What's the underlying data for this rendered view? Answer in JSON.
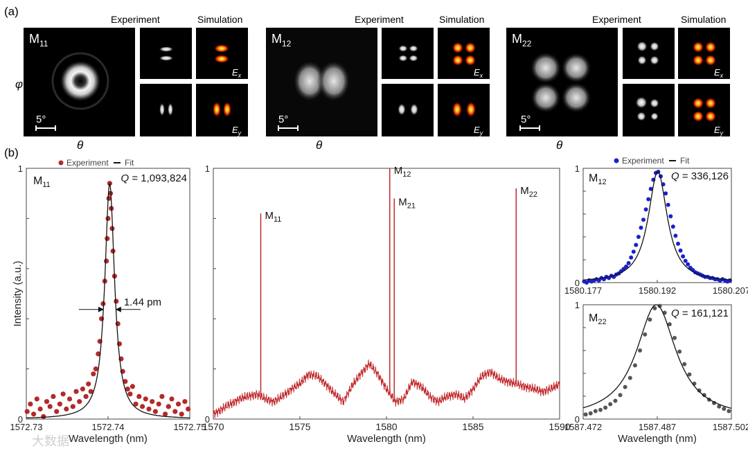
{
  "panel_a": {
    "label": "(a)",
    "col_experiment": "Experiment",
    "col_simulation": "Simulation",
    "phi_label": "φ",
    "theta_label": "θ",
    "scale_label": "5°",
    "ex_label": "E",
    "ex_sub": "x",
    "ey_label": "E",
    "ey_sub": "y",
    "modes": [
      {
        "name": "M",
        "sub": "11"
      },
      {
        "name": "M",
        "sub": "12"
      },
      {
        "name": "M",
        "sub": "22"
      }
    ]
  },
  "panel_b": {
    "label": "(b)",
    "watermark": "大数据"
  },
  "colors": {
    "experiment_red": "#b22a2a",
    "experiment_blue": "#1a22c8",
    "experiment_gray": "#555555",
    "fit": "#111111",
    "spectrum": "#c0282c"
  },
  "chart_data": [
    {
      "type": "scatter",
      "title": "M11",
      "mode_name": "M",
      "mode_sub": "11",
      "q_label": "Q",
      "q_value": " = 1,093,824",
      "xlabel": "Wavelength (nm)",
      "ylabel": "Intensity (a.u.)",
      "xlim": [
        1572.73,
        1572.75
      ],
      "ylim": [
        0,
        1
      ],
      "xticks": [
        "1572.73",
        "1572.74",
        "1572.75"
      ],
      "yticks": [
        "0",
        "1"
      ],
      "fwhm_label": "1.44 pm",
      "legend": [
        {
          "name": "Experiment",
          "marker": "dot"
        },
        {
          "name": "Fit",
          "marker": "line"
        }
      ],
      "fit": {
        "center": 1572.7402,
        "fwhm": 0.00144,
        "amplitude": 0.94,
        "baseline": 0.0
      },
      "series": [
        {
          "name": "Experiment",
          "x": [
            1572.7301,
            1572.7305,
            1572.7309,
            1572.7313,
            1572.7317,
            1572.7321,
            1572.7325,
            1572.7329,
            1572.7333,
            1572.7337,
            1572.7341,
            1572.7345,
            1572.7349,
            1572.7353,
            1572.7357,
            1572.7361,
            1572.7365,
            1572.7369,
            1572.7373,
            1572.7376,
            1572.7379,
            1572.7382,
            1572.7385,
            1572.7388,
            1572.739,
            1572.7392,
            1572.7394,
            1572.7396,
            1572.7398,
            1572.7399,
            1572.74,
            1572.7401,
            1572.7402,
            1572.7403,
            1572.7404,
            1572.7405,
            1572.7406,
            1572.7408,
            1572.741,
            1572.7412,
            1572.7414,
            1572.7416,
            1572.7418,
            1572.7421,
            1572.7424,
            1572.7427,
            1572.743,
            1572.7434,
            1572.7438,
            1572.7442,
            1572.7446,
            1572.745,
            1572.7454,
            1572.7458,
            1572.7462,
            1572.7466,
            1572.747,
            1572.7474,
            1572.7478,
            1572.7482,
            1572.7486,
            1572.749,
            1572.7494,
            1572.7498
          ],
          "y": [
            0.03,
            0.06,
            0.02,
            0.08,
            0.04,
            0.01,
            0.07,
            0.05,
            0.09,
            0.03,
            0.06,
            0.1,
            0.04,
            0.08,
            0.05,
            0.11,
            0.07,
            0.12,
            0.09,
            0.14,
            0.11,
            0.18,
            0.2,
            0.26,
            0.31,
            0.4,
            0.46,
            0.55,
            0.63,
            0.72,
            0.8,
            0.88,
            0.94,
            0.9,
            0.84,
            0.76,
            0.67,
            0.57,
            0.47,
            0.38,
            0.3,
            0.24,
            0.19,
            0.15,
            0.12,
            0.1,
            0.13,
            0.06,
            0.09,
            0.05,
            0.08,
            0.04,
            0.07,
            0.03,
            0.06,
            0.09,
            0.02,
            0.05,
            0.08,
            0.03,
            0.06,
            0.02,
            0.07,
            0.04
          ]
        }
      ]
    },
    {
      "type": "line",
      "xlabel": "Wavelength (nm)",
      "xlim": [
        1570,
        1590
      ],
      "ylim": [
        0,
        1
      ],
      "xticks": [
        "1570",
        "1575",
        "1580",
        "1585",
        "1590"
      ],
      "yticks": [
        "0",
        "1"
      ],
      "peaks": [
        {
          "name": "M",
          "sub": "11",
          "x": 1572.74,
          "y": 0.82
        },
        {
          "name": "M",
          "sub": "12",
          "x": 1580.19,
          "y": 1.0
        },
        {
          "name": "M",
          "sub": "21",
          "x": 1580.45,
          "y": 0.88
        },
        {
          "name": "M",
          "sub": "22",
          "x": 1587.49,
          "y": 0.92
        }
      ],
      "series": [
        {
          "name": "Spectrum",
          "x": [
            1570,
            1570.5,
            1571,
            1571.5,
            1572,
            1572.5,
            1573,
            1573.5,
            1574,
            1574.5,
            1575,
            1575.5,
            1576,
            1576.5,
            1577,
            1577.5,
            1578,
            1578.5,
            1579,
            1579.5,
            1580,
            1580.5,
            1581,
            1581.5,
            1582,
            1582.5,
            1583,
            1583.5,
            1584,
            1584.5,
            1585,
            1585.5,
            1586,
            1586.5,
            1587,
            1587.5,
            1588,
            1588.5,
            1589,
            1589.5,
            1590
          ],
          "y": [
            0.02,
            0.04,
            0.06,
            0.08,
            0.09,
            0.1,
            0.08,
            0.07,
            0.09,
            0.12,
            0.14,
            0.18,
            0.17,
            0.14,
            0.1,
            0.07,
            0.13,
            0.18,
            0.22,
            0.18,
            0.12,
            0.07,
            0.08,
            0.15,
            0.13,
            0.09,
            0.07,
            0.09,
            0.1,
            0.08,
            0.12,
            0.17,
            0.19,
            0.16,
            0.15,
            0.14,
            0.13,
            0.12,
            0.11,
            0.12,
            0.14
          ]
        }
      ]
    },
    {
      "type": "scatter",
      "mode_name": "M",
      "mode_sub": "12",
      "q_label": "Q",
      "q_value": " = 336,126",
      "xlim": [
        1580.177,
        1580.207
      ],
      "ylim": [
        0,
        1
      ],
      "xticks": [
        "1580.177",
        "1580.192",
        "1580.207"
      ],
      "yticks": [
        "0",
        "1"
      ],
      "legend": [
        {
          "name": "Experiment",
          "marker": "dot"
        },
        {
          "name": "Fit",
          "marker": "line"
        }
      ],
      "fit": {
        "center": 1580.1921,
        "fwhm": 0.0047,
        "amplitude": 0.97,
        "baseline": 0.0
      },
      "series": [
        {
          "name": "Experiment",
          "x": [
            1580.1772,
            1580.1777,
            1580.1782,
            1580.1787,
            1580.1792,
            1580.1797,
            1580.1802,
            1580.1807,
            1580.1812,
            1580.1817,
            1580.1822,
            1580.1827,
            1580.1832,
            1580.1837,
            1580.1842,
            1580.1847,
            1580.1852,
            1580.1857,
            1580.1862,
            1580.1867,
            1580.1872,
            1580.1877,
            1580.1882,
            1580.1887,
            1580.1892,
            1580.1897,
            1580.1902,
            1580.1907,
            1580.1912,
            1580.1917,
            1580.1922,
            1580.1927,
            1580.1932,
            1580.1937,
            1580.1942,
            1580.1947,
            1580.1952,
            1580.1957,
            1580.1962,
            1580.1967,
            1580.1972,
            1580.1977,
            1580.1982,
            1580.1987,
            1580.1992,
            1580.1997,
            1580.2002,
            1580.2007,
            1580.2012,
            1580.2017,
            1580.2022,
            1580.2027,
            1580.2032,
            1580.2037,
            1580.2042,
            1580.2047,
            1580.2052,
            1580.2057,
            1580.2062,
            1580.2067
          ],
          "y": [
            0.01,
            0.0,
            0.02,
            0.01,
            0.02,
            0.03,
            0.02,
            0.04,
            0.03,
            0.05,
            0.04,
            0.06,
            0.05,
            0.07,
            0.08,
            0.1,
            0.12,
            0.14,
            0.17,
            0.22,
            0.27,
            0.33,
            0.4,
            0.48,
            0.55,
            0.64,
            0.73,
            0.82,
            0.9,
            0.96,
            0.97,
            0.93,
            0.86,
            0.78,
            0.68,
            0.58,
            0.49,
            0.41,
            0.34,
            0.28,
            0.23,
            0.19,
            0.16,
            0.13,
            0.11,
            0.09,
            0.08,
            0.07,
            0.06,
            0.05,
            0.05,
            0.04,
            0.04,
            0.03,
            0.03,
            0.02,
            0.03,
            0.02,
            0.01,
            0.02
          ]
        }
      ]
    },
    {
      "type": "scatter",
      "mode_name": "M",
      "mode_sub": "22",
      "q_label": "Q",
      "q_value": " = 161,121",
      "xlabel": "Wavelength (nm)",
      "xlim": [
        1587.472,
        1587.502
      ],
      "ylim": [
        0,
        1
      ],
      "xticks": [
        "1587.472",
        "1587.487",
        "1587.502"
      ],
      "yticks": [
        "0",
        "1"
      ],
      "fit": {
        "center": 1587.4868,
        "fwhm": 0.0098,
        "amplitude": 1.0,
        "baseline": 0.0
      },
      "series": [
        {
          "name": "Experiment",
          "x": [
            1587.4725,
            1587.4735,
            1587.4745,
            1587.4755,
            1587.4765,
            1587.4775,
            1587.4785,
            1587.4795,
            1587.4805,
            1587.4815,
            1587.4825,
            1587.4835,
            1587.4845,
            1587.4855,
            1587.4865,
            1587.4875,
            1587.4885,
            1587.4895,
            1587.4905,
            1587.4915,
            1587.4925,
            1587.4935,
            1587.4945,
            1587.4955,
            1587.4965,
            1587.4975,
            1587.4985,
            1587.4995,
            1587.5005,
            1587.5015
          ],
          "y": [
            0.04,
            0.05,
            0.07,
            0.08,
            0.1,
            0.13,
            0.16,
            0.21,
            0.28,
            0.36,
            0.47,
            0.6,
            0.74,
            0.87,
            0.97,
            0.99,
            0.93,
            0.83,
            0.71,
            0.59,
            0.48,
            0.39,
            0.31,
            0.25,
            0.21,
            0.17,
            0.14,
            0.11,
            0.09,
            0.07
          ]
        }
      ]
    }
  ]
}
